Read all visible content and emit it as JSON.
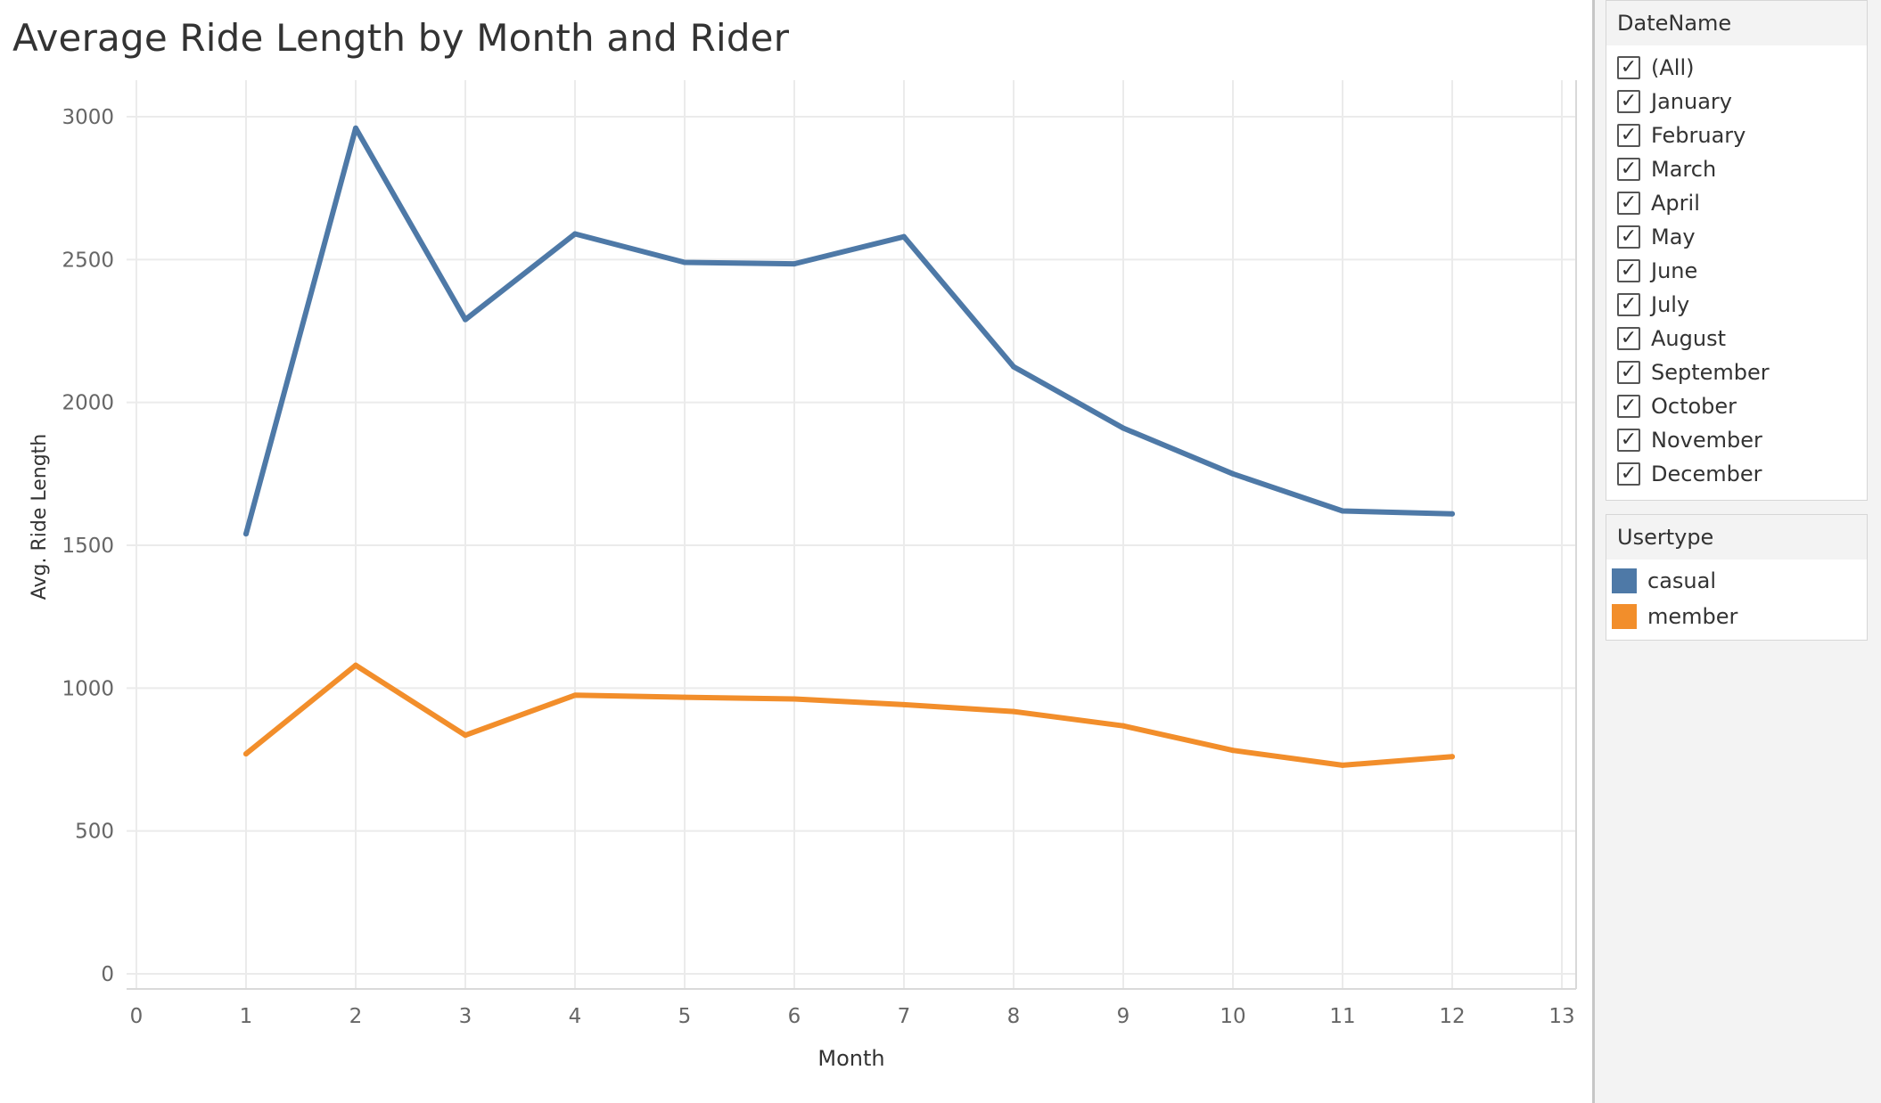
{
  "chart_data": {
    "type": "line",
    "title": "Average Ride Length by Month and Rider",
    "xlabel": "Month",
    "ylabel": "Avg. Ride Length",
    "x": [
      1,
      2,
      3,
      4,
      5,
      6,
      7,
      8,
      9,
      10,
      11,
      12
    ],
    "xlim": [
      0,
      13
    ],
    "ylim": [
      0,
      3000
    ],
    "x_ticks": [
      0,
      1,
      2,
      3,
      4,
      5,
      6,
      7,
      8,
      9,
      10,
      11,
      12,
      13
    ],
    "y_ticks": [
      0,
      500,
      1000,
      1500,
      2000,
      2500,
      3000
    ],
    "grid": true,
    "legend_position": "right",
    "series": [
      {
        "name": "casual",
        "color": "#4e79a7",
        "values": [
          1540,
          2960,
          2290,
          2590,
          2490,
          2485,
          2580,
          2125,
          1910,
          1750,
          1620,
          1610
        ]
      },
      {
        "name": "member",
        "color": "#f28e2b",
        "values": [
          770,
          1080,
          835,
          975,
          968,
          962,
          942,
          918,
          868,
          782,
          730,
          760
        ]
      }
    ]
  },
  "filter": {
    "title": "DateName",
    "items": [
      {
        "label": "(All)",
        "checked": true
      },
      {
        "label": "January",
        "checked": true
      },
      {
        "label": "February",
        "checked": true
      },
      {
        "label": "March",
        "checked": true
      },
      {
        "label": "April",
        "checked": true
      },
      {
        "label": "May",
        "checked": true
      },
      {
        "label": "June",
        "checked": true
      },
      {
        "label": "July",
        "checked": true
      },
      {
        "label": "August",
        "checked": true
      },
      {
        "label": "September",
        "checked": true
      },
      {
        "label": "October",
        "checked": true
      },
      {
        "label": "November",
        "checked": true
      },
      {
        "label": "December",
        "checked": true
      }
    ]
  },
  "legend": {
    "title": "Usertype"
  }
}
